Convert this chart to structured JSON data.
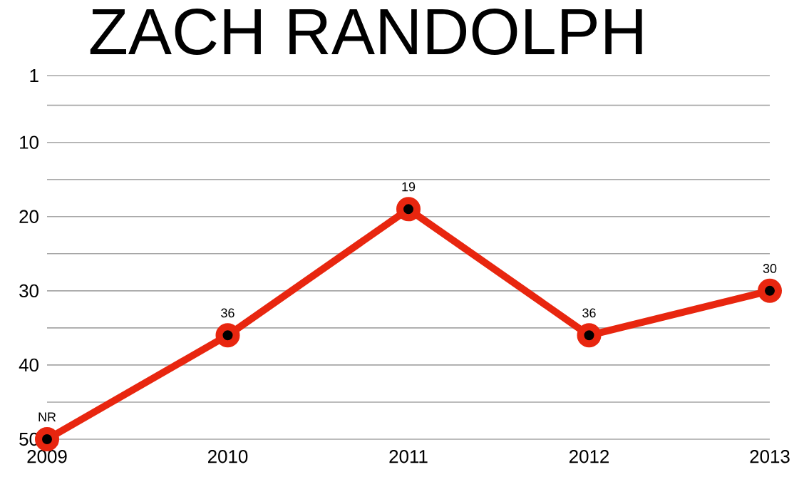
{
  "chart_data": {
    "type": "line",
    "title": "ZACH RANDOLPH",
    "categories": [
      "2009",
      "2010",
      "2011",
      "2012",
      "2013"
    ],
    "values": [
      50,
      36,
      19,
      36,
      30
    ],
    "value_labels": [
      "NR",
      "36",
      "19",
      "36",
      "30"
    ],
    "color": "#e8260f",
    "marker": "circle",
    "line_style": "solid",
    "ylim": [
      50,
      1
    ],
    "yticks": [
      1,
      {
        "value": 5,
        "label": null
      },
      10,
      {
        "value": 15,
        "label": null
      },
      20,
      {
        "value": 25,
        "label": null
      },
      30,
      {
        "value": 35,
        "label": null
      },
      40,
      {
        "value": 45,
        "label": null
      },
      50
    ],
    "grid": "y"
  }
}
